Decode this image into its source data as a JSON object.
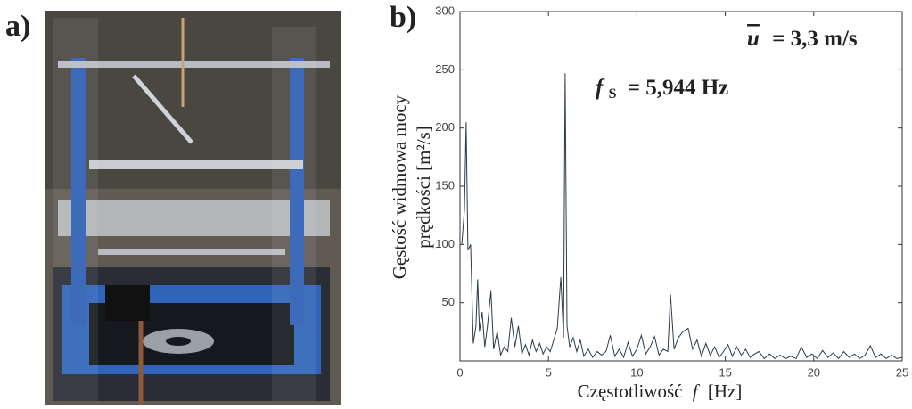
{
  "panel_labels": [
    "a)",
    "b)"
  ],
  "chart_data": {
    "type": "line",
    "xlabel": {
      "text": "Częstotliwość",
      "symbol": "f",
      "unit": "[Hz]"
    },
    "ylabel": [
      "Gęstość widmowa mocy",
      "prędkości  [m²/s]"
    ],
    "annotations": [
      {
        "symbol": "u",
        "text": "= 3,3 m/s"
      },
      {
        "symbol": "f",
        "subscript": "S",
        "text": "= 5,944 Hz"
      }
    ],
    "color": "#2b3a4a",
    "xlim": [
      0,
      25
    ],
    "xticks": [
      0,
      5,
      10,
      15,
      20,
      25
    ],
    "ylim": [
      0,
      300
    ],
    "yticks": [
      50,
      100,
      150,
      200,
      250,
      300
    ],
    "x": [
      0.1,
      0.25,
      0.35,
      0.45,
      0.6,
      0.75,
      0.9,
      1.0,
      1.1,
      1.25,
      1.4,
      1.55,
      1.75,
      1.9,
      2.1,
      2.3,
      2.5,
      2.7,
      2.9,
      3.1,
      3.3,
      3.5,
      3.7,
      3.9,
      4.1,
      4.3,
      4.5,
      4.7,
      4.9,
      5.1,
      5.3,
      5.5,
      5.7,
      5.85,
      5.944,
      6.05,
      6.2,
      6.4,
      6.6,
      6.8,
      7.0,
      7.25,
      7.5,
      7.75,
      8.0,
      8.25,
      8.5,
      8.75,
      9.0,
      9.25,
      9.5,
      9.75,
      10.0,
      10.25,
      10.5,
      10.75,
      11.0,
      11.25,
      11.5,
      11.75,
      11.9,
      12.1,
      12.35,
      12.6,
      12.9,
      13.15,
      13.4,
      13.65,
      13.9,
      14.15,
      14.4,
      14.65,
      14.9,
      15.15,
      15.4,
      15.65,
      15.9,
      16.15,
      16.4,
      16.65,
      16.9,
      17.2,
      17.5,
      17.8,
      18.1,
      18.4,
      18.7,
      19.0,
      19.3,
      19.6,
      19.9,
      20.2,
      20.5,
      20.8,
      21.1,
      21.4,
      21.7,
      22.0,
      22.3,
      22.6,
      22.9,
      23.2,
      23.5,
      23.8,
      24.1,
      24.4,
      24.7,
      25.0
    ],
    "values": [
      100,
      130,
      205,
      95,
      100,
      15,
      30,
      70,
      25,
      42,
      12,
      30,
      60,
      10,
      25,
      5,
      12,
      8,
      37,
      12,
      30,
      6,
      14,
      5,
      18,
      8,
      15,
      6,
      12,
      8,
      18,
      28,
      72,
      20,
      247,
      30,
      12,
      20,
      8,
      18,
      4,
      10,
      3,
      8,
      5,
      8,
      22,
      4,
      10,
      3,
      16,
      4,
      10,
      22,
      6,
      12,
      21,
      5,
      10,
      8,
      57,
      10,
      20,
      25,
      28,
      10,
      18,
      4,
      15,
      5,
      12,
      3,
      8,
      14,
      4,
      12,
      5,
      10,
      3,
      6,
      8,
      2,
      6,
      2,
      5,
      2,
      4,
      2,
      12,
      3,
      6,
      2,
      9,
      3,
      7,
      2,
      8,
      3,
      6,
      2,
      5,
      13,
      3,
      6,
      2,
      5,
      2,
      3
    ]
  }
}
